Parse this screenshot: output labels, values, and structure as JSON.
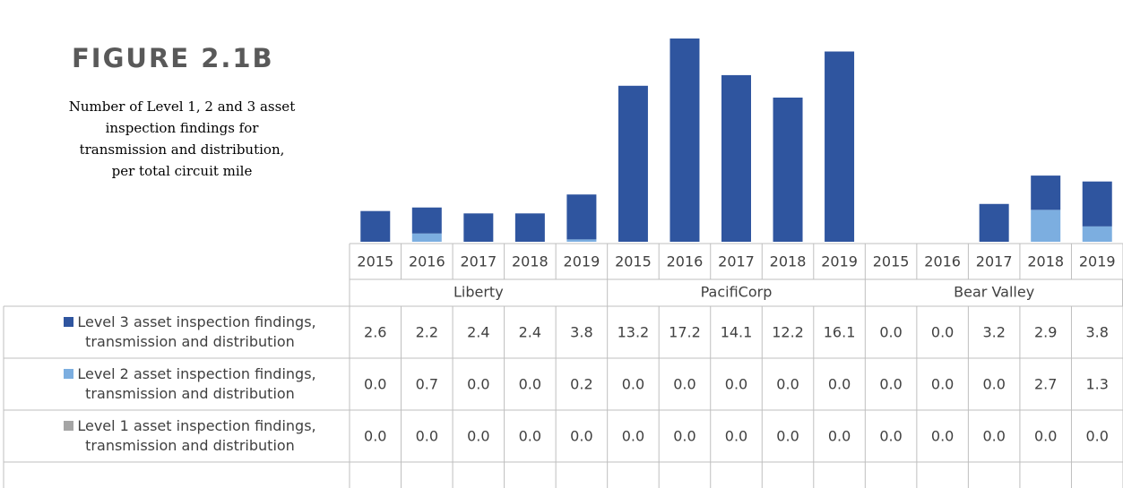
{
  "chart_data": {
    "type": "stacked_bar",
    "title": "FIGURE 2.1B",
    "subtitle": [
      "Number of Level 1, 2 and 3 asset",
      "inspection findings for",
      "transmission and distribution,",
      "per total circuit mile"
    ],
    "categories": [
      "2015",
      "2016",
      "2017",
      "2018",
      "2019",
      "2015",
      "2016",
      "2017",
      "2018",
      "2019",
      "2015",
      "2016",
      "2017",
      "2018",
      "2019"
    ],
    "groups": [
      {
        "name": "Liberty",
        "size": 5
      },
      {
        "name": "PacifiCorp",
        "size": 5
      },
      {
        "name": "Bear Valley",
        "size": 5
      }
    ],
    "series": [
      {
        "name": "Level 3 asset inspection findings, transmission and distribution",
        "color": "#2f559f",
        "values": [
          2.6,
          2.2,
          2.4,
          2.4,
          3.8,
          13.2,
          17.2,
          14.1,
          12.2,
          16.1,
          0,
          0,
          3.2,
          2.9,
          3.8
        ],
        "value_labels": [
          "2.6",
          "2.2",
          "2.4",
          "2.4",
          "3.8",
          "13.2",
          "17.2",
          "14.1",
          "12.2",
          "16.1",
          "0.0",
          "0.0",
          "3.2",
          "2.9",
          "3.8"
        ]
      },
      {
        "name": "Level 2 asset inspection findings, transmission and distribution",
        "color": "#7caee0",
        "values": [
          0,
          0.7,
          0,
          0,
          0.2,
          0,
          0,
          0,
          0,
          0,
          0,
          0,
          0,
          2.7,
          1.3
        ],
        "value_labels": [
          "0.0",
          "0.7",
          "0.0",
          "0.0",
          "0.2",
          "0.0",
          "0.0",
          "0.0",
          "0.0",
          "0.0",
          "0.0",
          "0.0",
          "0.0",
          "2.7",
          "1.3"
        ]
      },
      {
        "name": "Level 1 asset inspection findings, transmission and distribution",
        "color": "#a5a5a5",
        "values": [
          0,
          0,
          0,
          0,
          0,
          0,
          0,
          0,
          0,
          0,
          0,
          0,
          0,
          0,
          0
        ],
        "value_labels": [
          "0.0",
          "0.0",
          "0.0",
          "0.0",
          "0.0",
          "0.0",
          "0.0",
          "0.0",
          "0.0",
          "0.0",
          "0.0",
          "0.0",
          "0.0",
          "0.0",
          "0.0"
        ]
      }
    ]
  }
}
